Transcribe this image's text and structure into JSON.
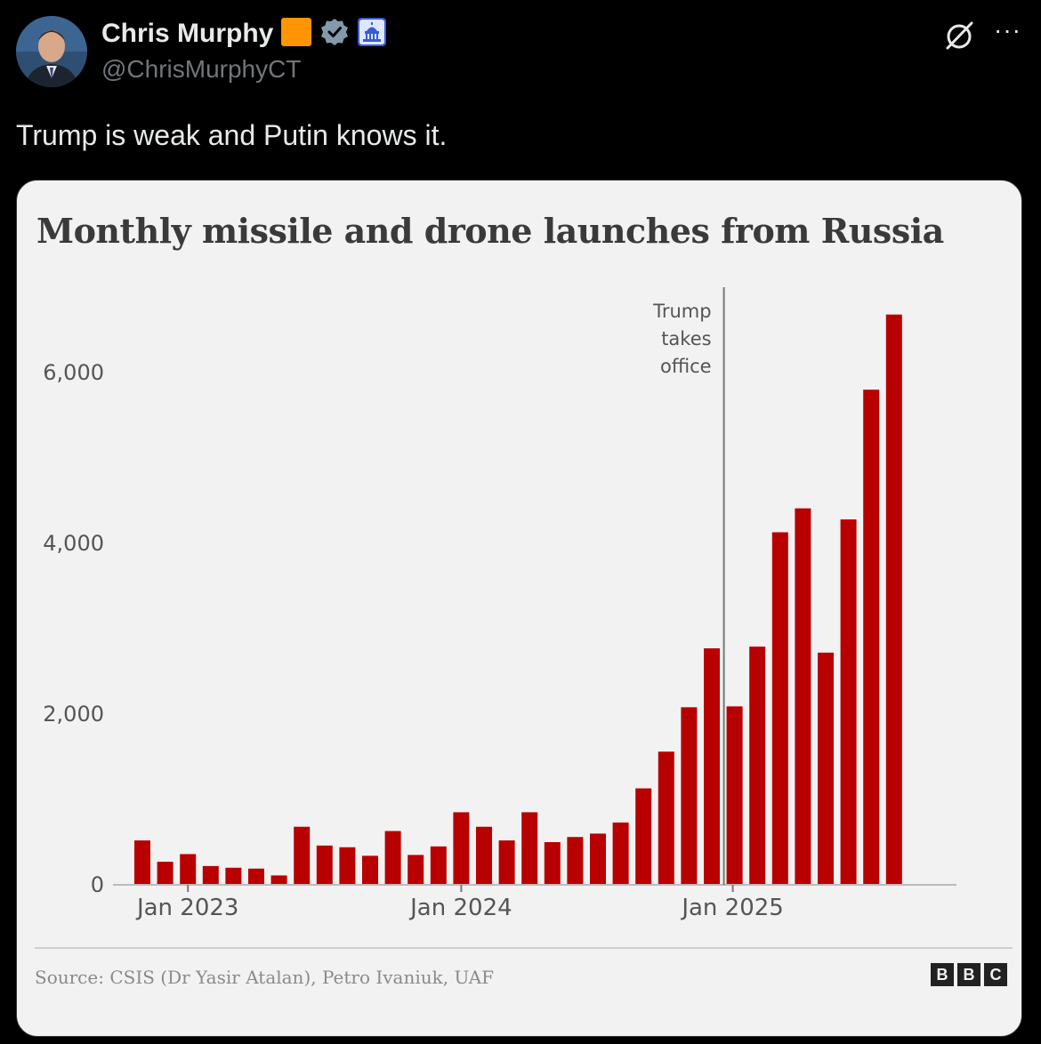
{
  "post": {
    "display_name": "Chris Murphy",
    "handle": "@ChrisMurphyCT",
    "text": "Trump is weak and Putin knows it.",
    "more_label": "···",
    "colors": {
      "orange_badge": "#ff9500",
      "verified": "#829aab",
      "capitol_badge": "#3a5bd6"
    }
  },
  "chart": {
    "source": "Source: CSIS (Dr Yasir Atalan), Petro Ivaniuk, UAF",
    "logo_letters": [
      "B",
      "B",
      "C"
    ]
  },
  "chart_data": {
    "type": "bar",
    "title": "Monthly missile and drone launches from Russia",
    "ylim": [
      0,
      7000
    ],
    "yticks": [
      0,
      2000,
      4000,
      6000
    ],
    "ytick_labels": [
      "0",
      "2,000",
      "4,000",
      "6,000"
    ],
    "xtick_labels": [
      {
        "label": "Jan 2023",
        "index": 2
      },
      {
        "label": "Jan 2024",
        "index": 14
      },
      {
        "label": "Jan 2025",
        "index": 26
      }
    ],
    "annotation": {
      "lines": [
        "Trump",
        "takes",
        "office"
      ],
      "index": 26
    },
    "bar_color": "#b80000",
    "values": [
      520,
      270,
      360,
      220,
      200,
      190,
      110,
      680,
      460,
      440,
      340,
      630,
      350,
      450,
      850,
      680,
      520,
      850,
      500,
      560,
      600,
      730,
      1130,
      1560,
      2080,
      2770,
      2090,
      2790,
      4130,
      4410,
      2720,
      4280,
      5800,
      6680
    ],
    "grid": false
  }
}
